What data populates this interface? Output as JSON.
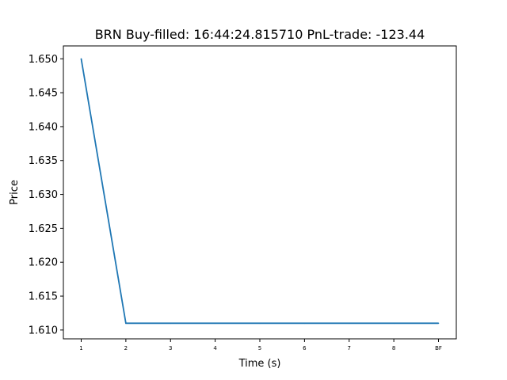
{
  "chart_data": {
    "type": "line",
    "title": "BRN  Buy-filled:  16:44:24.815710  PnL-trade:  -123.44",
    "xlabel": "Time (s)",
    "ylabel": "Price",
    "categories": [
      "1",
      "2",
      "3",
      "4",
      "5",
      "6",
      "7",
      "8",
      "BF"
    ],
    "series": [
      {
        "values": [
          1.65,
          1.611,
          1.611,
          1.611,
          1.611,
          1.611,
          1.611,
          1.611,
          1.611
        ],
        "color": "#1f77b4"
      }
    ],
    "ylim": [
      1.6087,
      1.6519
    ],
    "yticks": [
      1.61,
      1.615,
      1.62,
      1.625,
      1.63,
      1.635,
      1.64,
      1.645,
      1.65
    ],
    "ytick_labels": [
      "1.610",
      "1.615",
      "1.620",
      "1.625",
      "1.630",
      "1.635",
      "1.640",
      "1.645",
      "1.650"
    ],
    "grid": false,
    "legend": "none"
  }
}
